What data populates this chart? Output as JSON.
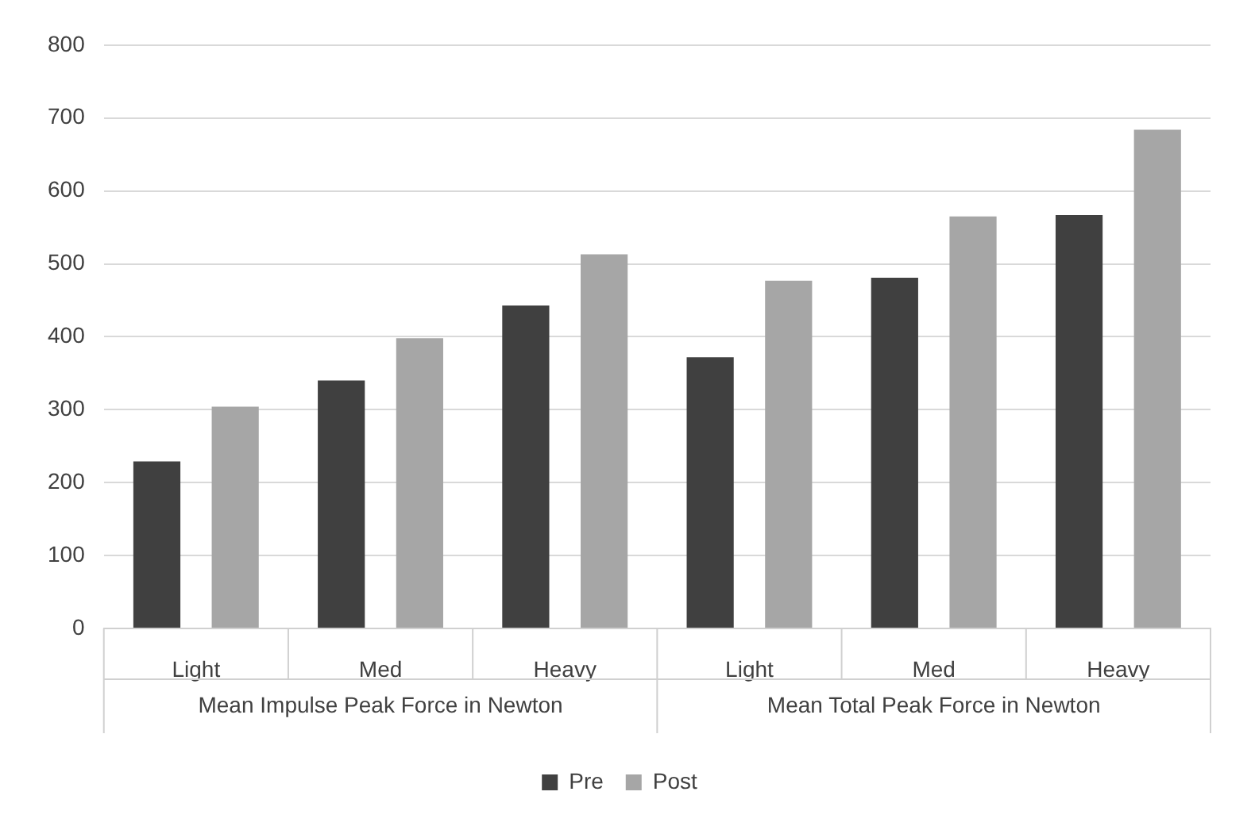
{
  "chart_data": {
    "type": "bar",
    "categories": [
      "Light",
      "Med",
      "Heavy",
      "Light",
      "Med",
      "Heavy"
    ],
    "series": [
      {
        "name": "Pre",
        "color": "#404040",
        "values": [
          229,
          340,
          443,
          372,
          481,
          567
        ]
      },
      {
        "name": "Post",
        "color": "#a6a6a6",
        "values": [
          304,
          398,
          513,
          477,
          565,
          684
        ]
      }
    ],
    "ylim": [
      0,
      800
    ],
    "yticks": [
      0,
      100,
      200,
      300,
      400,
      500,
      600,
      700,
      800
    ],
    "grid": "y",
    "legend": "bottom",
    "annotations": [
      "Mean Impulse Peak Force in Newton",
      "Mean Total Peak Force in Newton"
    ]
  }
}
